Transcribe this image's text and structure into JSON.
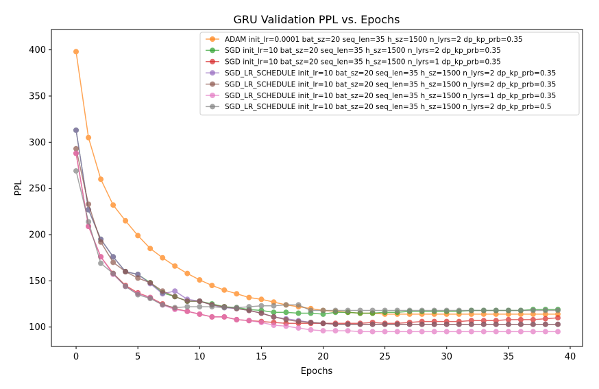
{
  "chart_data": {
    "type": "line",
    "title": "GRU Validation PPL vs. Epochs",
    "xlabel": "Epochs",
    "ylabel": "PPL",
    "xlim": [
      -2,
      41
    ],
    "ylim": [
      79,
      422
    ],
    "xticks": [
      0,
      5,
      10,
      15,
      20,
      25,
      30,
      35,
      40
    ],
    "yticks": [
      100,
      150,
      200,
      250,
      300,
      350,
      400
    ],
    "grid": false,
    "legend_position": "top-right",
    "x": [
      0,
      1,
      2,
      3,
      4,
      5,
      6,
      7,
      8,
      9,
      10,
      11,
      12,
      13,
      14,
      15,
      16,
      17,
      18,
      19,
      20,
      21,
      22,
      23,
      24,
      25,
      26,
      27,
      28,
      29,
      30,
      31,
      32,
      33,
      34,
      35,
      36,
      37,
      38,
      39
    ],
    "series": [
      {
        "name": "ADAM init_lr=0.0001 bat_sz=20 seq_len=35 h_sz=1500 n_lyrs=2 dp_kp_prb=0.35",
        "color": "#ff7f0e",
        "values": [
          398,
          305,
          260,
          232,
          215,
          199,
          185,
          175,
          166,
          158,
          151,
          145,
          140,
          136,
          132,
          130,
          127,
          124,
          122,
          120,
          118,
          117,
          116,
          115,
          115,
          114,
          114,
          114,
          114,
          114,
          114,
          114,
          114,
          114,
          114,
          114,
          114,
          114,
          114,
          114
        ]
      },
      {
        "name": "SGD init_lr=10 bat_sz=20 seq_len=35 h_sz=1500 n_lyrs=2 dp_kp_prb=0.35",
        "color": "#2ca02c",
        "values": [
          313,
          227,
          195,
          176,
          160,
          157,
          148,
          137,
          133,
          128,
          128,
          125,
          122,
          121,
          119,
          118,
          116,
          116,
          115,
          115,
          114,
          116,
          116,
          115,
          115,
          116,
          116,
          117,
          117,
          117,
          117,
          117,
          118,
          118,
          118,
          118,
          118,
          119,
          119,
          119
        ]
      },
      {
        "name": "SGD init_lr=10 bat_sz=20 seq_len=35 h_sz=1500 n_lyrs=1 dp_kp_prb=0.35",
        "color": "#d62728",
        "values": [
          288,
          209,
          176,
          158,
          145,
          137,
          132,
          125,
          120,
          117,
          114,
          111,
          111,
          108,
          107,
          106,
          105,
          104,
          104,
          104,
          104,
          104,
          104,
          104,
          105,
          104,
          104,
          105,
          106,
          106,
          106,
          106,
          107,
          107,
          107,
          108,
          108,
          108,
          109,
          110
        ]
      },
      {
        "name": "SGD_LR_SCHEDULE init_lr=10 bat_sz=20 seq_len=35 h_sz=1500 n_lyrs=2 dp_kp_prb=0.35",
        "color": "#9467bd",
        "values": [
          313,
          227,
          195,
          176,
          160,
          157,
          147,
          136,
          139,
          130,
          128,
          124,
          121,
          120,
          118,
          115,
          111,
          109,
          107,
          105,
          104,
          103,
          103,
          103,
          103,
          103,
          103,
          103,
          103,
          103,
          103,
          103,
          103,
          103,
          103,
          103,
          103,
          103,
          103,
          103
        ]
      },
      {
        "name": "SGD_LR_SCHEDULE init_lr=10 bat_sz=20 seq_len=35 h_sz=1500 n_lyrs=2 dp_kp_prb=0.35",
        "color": "#8c564b",
        "values": [
          293,
          233,
          192,
          170,
          160,
          153,
          148,
          139,
          133,
          128,
          128,
          124,
          122,
          120,
          118,
          115,
          111,
          108,
          106,
          105,
          104,
          103,
          103,
          103,
          103,
          103,
          103,
          103,
          103,
          103,
          103,
          103,
          103,
          103,
          103,
          103,
          103,
          103,
          103,
          103
        ]
      },
      {
        "name": "SGD_LR_SCHEDULE init_lr=10 bat_sz=20 seq_len=35 h_sz=1500 n_lyrs=1 dp_kp_prb=0.35",
        "color": "#e377c2",
        "values": [
          288,
          209,
          176,
          157,
          144,
          136,
          132,
          124,
          119,
          117,
          114,
          111,
          111,
          108,
          107,
          105,
          102,
          101,
          99,
          97,
          96,
          96,
          96,
          95,
          95,
          95,
          95,
          95,
          95,
          95,
          95,
          95,
          95,
          95,
          95,
          95,
          95,
          95,
          95,
          95
        ]
      },
      {
        "name": "SGD_LR_SCHEDULE init_lr=10 bat_sz=20 seq_len=35 h_sz=1500 n_lyrs=2 dp_kp_prb=0.5",
        "color": "#7f7f7f",
        "values": [
          269,
          214,
          169,
          158,
          144,
          135,
          131,
          124,
          121,
          122,
          122,
          122,
          121,
          121,
          122,
          123,
          123,
          124,
          124,
          118,
          118,
          118,
          118,
          118,
          118,
          118,
          118,
          118,
          118,
          118,
          118,
          118,
          118,
          118,
          118,
          118,
          118,
          118,
          118,
          118
        ]
      }
    ]
  }
}
